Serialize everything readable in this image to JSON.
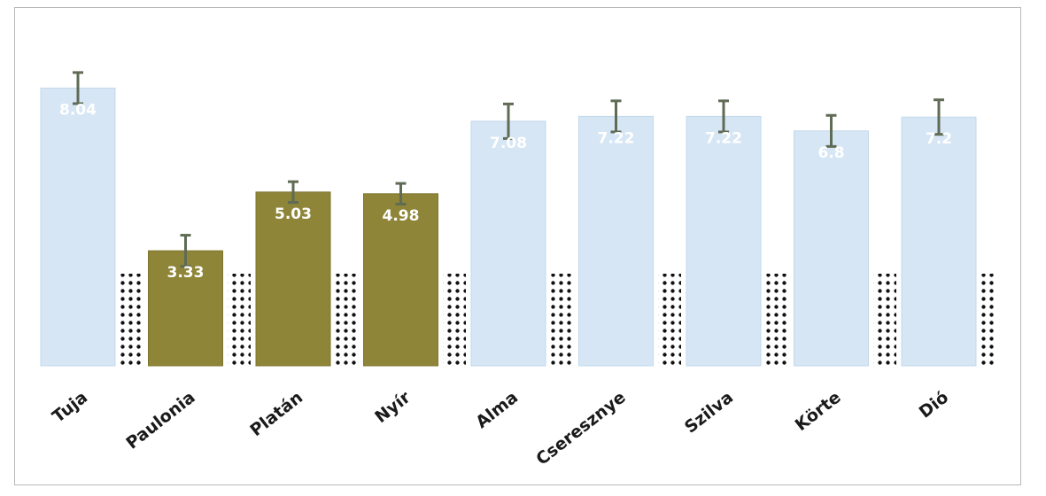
{
  "chart_data": {
    "type": "bar",
    "title": "",
    "xlabel": "",
    "ylabel": "",
    "categories": [
      "Tuja",
      "Paulonia",
      "Platán",
      "Nyír",
      "Alma",
      "Cseresznye",
      "Szilva",
      "Körte",
      "Dió"
    ],
    "values": [
      8.04,
      3.33,
      5.03,
      4.98,
      7.08,
      7.22,
      7.22,
      6.8,
      7.2
    ],
    "value_labels": [
      "8.04",
      "3.33",
      "5.03",
      "4.98",
      "7.08",
      "7.22",
      "7.22",
      "6.8",
      "7.2"
    ],
    "error": [
      0.45,
      0.45,
      0.3,
      0.3,
      0.5,
      0.45,
      0.45,
      0.45,
      0.5
    ],
    "bar_colors": [
      "#d6e6f5",
      "#8e8538",
      "#8e8538",
      "#8e8538",
      "#d6e6f5",
      "#d6e6f5",
      "#d6e6f5",
      "#d6e6f5",
      "#d6e6f5"
    ],
    "errorbar_color": "#5f6b55",
    "grid": false,
    "legend": "none"
  }
}
